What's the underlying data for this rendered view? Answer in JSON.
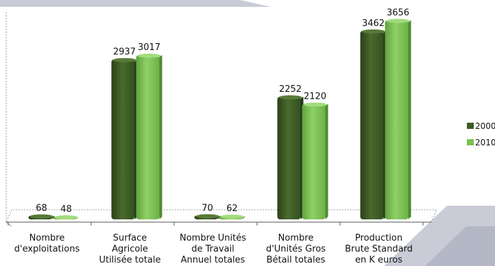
{
  "chart_data": {
    "type": "bar",
    "categories": [
      [
        "Nombre",
        "d'exploitations"
      ],
      [
        "Surface",
        "Agricole",
        "Utilisée totale"
      ],
      [
        "Nombre Unités",
        "de Travail",
        "Annuel totales"
      ],
      [
        "Nombre",
        "d'Unités Gros",
        "Bétail totales"
      ],
      [
        "Production",
        "Brute Standard",
        "en K euros"
      ]
    ],
    "series": [
      {
        "name": "2000",
        "values": [
          68,
          2937,
          70,
          2252,
          3462
        ],
        "labels": [
          "68",
          "2937",
          "70",
          "2252",
          "3462"
        ]
      },
      {
        "name": "2010",
        "values": [
          48,
          3017,
          62,
          2120,
          3656
        ],
        "labels": [
          "48",
          "3017",
          "62",
          "2120",
          "3656"
        ]
      }
    ],
    "ylim": [
      0,
      3800
    ],
    "grid": false,
    "legend_position": "right",
    "style": "3d-cylinder-bars",
    "colors": {
      "series_2000": "#3d5a25",
      "series_2000_dark": "#2b4119",
      "series_2000_light": "#587a38",
      "series_2010": "#79c251",
      "series_2010_dark": "#5a9a3a",
      "series_2010_light": "#9ed878",
      "background_band": "#c9ccd6"
    }
  }
}
